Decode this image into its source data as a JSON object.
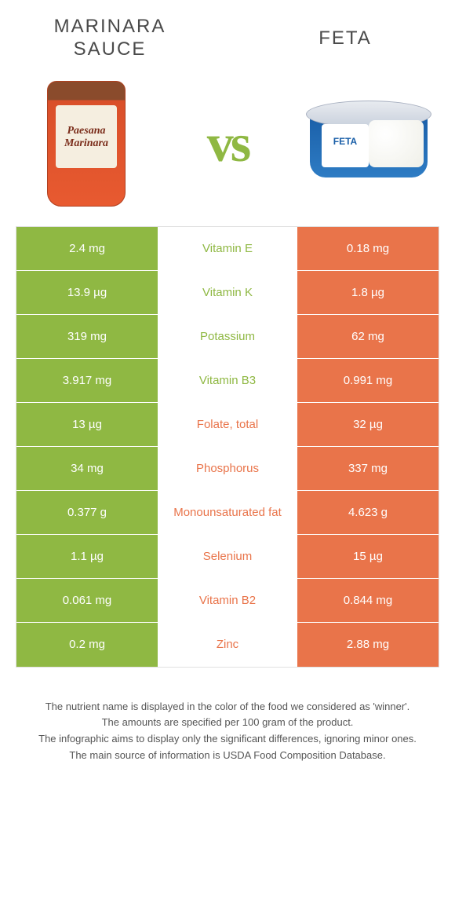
{
  "comparison": {
    "left_title": "MARINARA SAUCE",
    "right_title": "FETA",
    "vs_text": "vs",
    "left_product_label": "Paesana Marinara",
    "right_product_label": "FETA"
  },
  "colors": {
    "green": "#8fb843",
    "orange": "#e9744a",
    "mid_green_text": "#8fb843",
    "mid_orange_text": "#e9744a"
  },
  "table": {
    "rows": [
      {
        "nutrient": "Vitamin E",
        "left": "2.4 mg",
        "right": "0.18 mg",
        "winner": "left"
      },
      {
        "nutrient": "Vitamin K",
        "left": "13.9 µg",
        "right": "1.8 µg",
        "winner": "left"
      },
      {
        "nutrient": "Potassium",
        "left": "319 mg",
        "right": "62 mg",
        "winner": "left"
      },
      {
        "nutrient": "Vitamin B3",
        "left": "3.917 mg",
        "right": "0.991 mg",
        "winner": "left"
      },
      {
        "nutrient": "Folate, total",
        "left": "13 µg",
        "right": "32 µg",
        "winner": "right"
      },
      {
        "nutrient": "Phosphorus",
        "left": "34 mg",
        "right": "337 mg",
        "winner": "right"
      },
      {
        "nutrient": "Monounsaturated fat",
        "left": "0.377 g",
        "right": "4.623 g",
        "winner": "right"
      },
      {
        "nutrient": "Selenium",
        "left": "1.1 µg",
        "right": "15 µg",
        "winner": "right"
      },
      {
        "nutrient": "Vitamin B2",
        "left": "0.061 mg",
        "right": "0.844 mg",
        "winner": "right"
      },
      {
        "nutrient": "Zinc",
        "left": "0.2 mg",
        "right": "2.88 mg",
        "winner": "right"
      }
    ]
  },
  "footnotes": [
    "The nutrient name is displayed in the color of the food we considered as 'winner'.",
    "The amounts are specified per 100 gram of the product.",
    "The infographic aims to display only the significant differences, ignoring minor ones.",
    "The main source of information is USDA Food Composition Database."
  ]
}
